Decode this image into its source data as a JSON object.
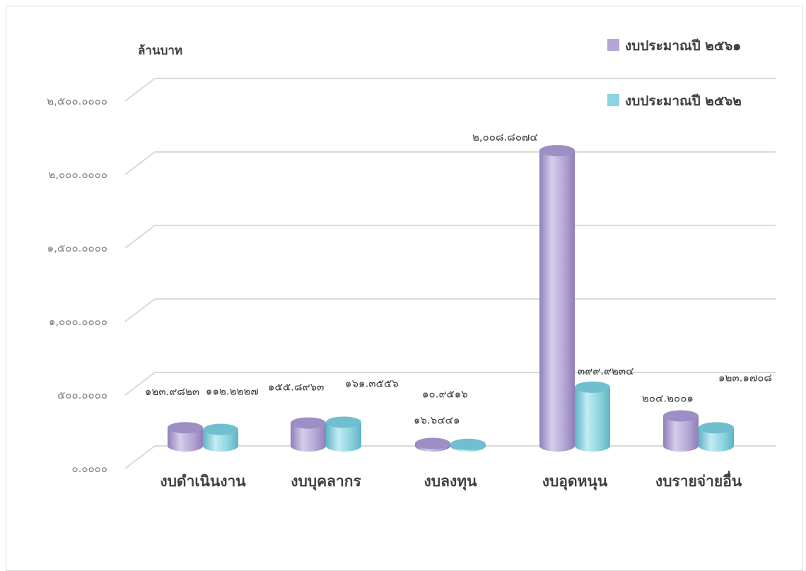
{
  "chart_data": {
    "type": "bar",
    "categories": [
      "งบดำเนินงาน",
      "งบบุคลากร",
      "งบลงทุน",
      "งบอุดหนุน",
      "งบรายจ่ายอื่น"
    ],
    "series": [
      {
        "name": "งบประมาณปี ๒๕๖๑",
        "color": "#b4a7d6",
        "values": [
          123.9823,
          155.8963,
          16.6441,
          2008.8074,
          204.2001
        ],
        "labels": [
          "๑๒๓.๙๘๒๓",
          "๑๕๕.๘๙๖๓",
          "๑๖.๖๔๔๑",
          "๒,๐๐๘.๘๐๗๔",
          "๒๐๔.๒๐๐๑"
        ]
      },
      {
        "name": "งบประมาณปี ๒๕๖๒",
        "color": "#8ed3e0",
        "values": [
          112.2227,
          161.3556,
          10.9516,
          399.9234,
          123.1708
        ],
        "labels": [
          "๑๑๒.๒๒๒๗",
          "๑๖๑.๓๕๕๖",
          "๑๐.๙๕๑๖",
          "๓๙๙.๙๒๓๔",
          "๑๒๓.๑๗๐๘"
        ]
      }
    ],
    "ylabel": "ล้านบาท",
    "ylim": [
      0,
      2500
    ],
    "yticks": [
      0,
      500,
      1000,
      1500,
      2000,
      2500
    ],
    "ytick_labels": [
      "๐.๐๐๐๐",
      "๕๐๐.๐๐๐๐",
      "๑,๐๐๐.๐๐๐๐",
      "๑,๕๐๐.๐๐๐๐",
      "๒,๐๐๐.๐๐๐๐",
      "๒,๕๐๐.๐๐๐๐"
    ],
    "grid": true,
    "legend_position": "top-right",
    "style": "3d-cylinder"
  }
}
